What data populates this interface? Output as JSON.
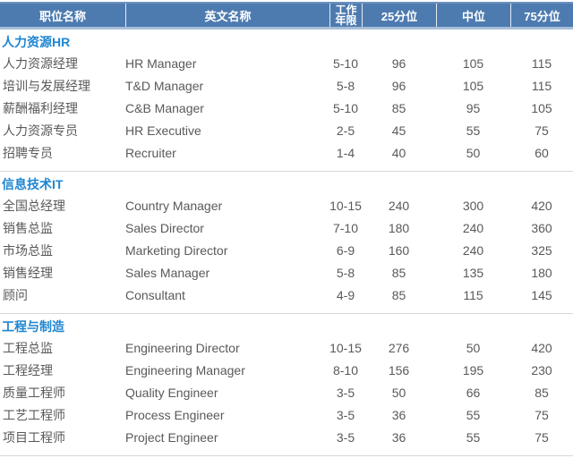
{
  "colors": {
    "header_bg": "#4d7bb0",
    "header_text": "#ffffff",
    "header_bottom_strip": "#a9bfd8",
    "section_title_text": "#1f86d1",
    "row_text": "#595959",
    "divider": "#d8d8d8"
  },
  "chart_data": {
    "type": "table",
    "title": "",
    "columns": [
      "职位名称",
      "英文名称",
      "工作年限",
      "25分位",
      "中位",
      "75分位"
    ],
    "column_keys": [
      "zh",
      "en",
      "years",
      "p25",
      "median",
      "p75"
    ],
    "sections": [
      {
        "title": "人力资源HR",
        "rows": [
          {
            "zh": "人力资源经理",
            "en": "HR Manager",
            "years": "5-10",
            "p25": 96,
            "median": 105,
            "p75": 115
          },
          {
            "zh": "培训与发展经理",
            "en": "T&D Manager",
            "years": "5-8",
            "p25": 96,
            "median": 105,
            "p75": 115
          },
          {
            "zh": "薪酬福利经理",
            "en": "C&B Manager",
            "years": "5-10",
            "p25": 85,
            "median": 95,
            "p75": 105
          },
          {
            "zh": "人力资源专员",
            "en": "HR Executive",
            "years": "2-5",
            "p25": 45,
            "median": 55,
            "p75": 75
          },
          {
            "zh": "招聘专员",
            "en": "Recruiter",
            "years": "1-4",
            "p25": 40,
            "median": 50,
            "p75": 60
          }
        ]
      },
      {
        "title": "信息技术IT",
        "rows": [
          {
            "zh": "全国总经理",
            "en": "Country Manager",
            "years": "10-15",
            "p25": 240,
            "median": 300,
            "p75": 420
          },
          {
            "zh": "销售总监",
            "en": "Sales Director",
            "years": "7-10",
            "p25": 180,
            "median": 240,
            "p75": 360
          },
          {
            "zh": "市场总监",
            "en": "Marketing Director",
            "years": "6-9",
            "p25": 160,
            "median": 240,
            "p75": 325
          },
          {
            "zh": "销售经理",
            "en": "Sales Manager",
            "years": "5-8",
            "p25": 85,
            "median": 135,
            "p75": 180
          },
          {
            "zh": "顾问",
            "en": "Consultant",
            "years": "4-9",
            "p25": 85,
            "median": 115,
            "p75": 145
          }
        ]
      },
      {
        "title": "工程与制造",
        "rows": [
          {
            "zh": "工程总监",
            "en": "Engineering Director",
            "years": "10-15",
            "p25": 276,
            "median": 50,
            "p75": 420
          },
          {
            "zh": "工程经理",
            "en": "Engineering Manager",
            "years": "8-10",
            "p25": 156,
            "median": 195,
            "p75": 230
          },
          {
            "zh": "质量工程师",
            "en": "Quality Engineer",
            "years": "3-5",
            "p25": 50,
            "median": 66,
            "p75": 85
          },
          {
            "zh": "工艺工程师",
            "en": "Process Engineer",
            "years": "3-5",
            "p25": 36,
            "median": 55,
            "p75": 75
          },
          {
            "zh": "项目工程师",
            "en": "Project Engineer",
            "years": "3-5",
            "p25": 36,
            "median": 55,
            "p75": 75
          }
        ]
      }
    ]
  }
}
